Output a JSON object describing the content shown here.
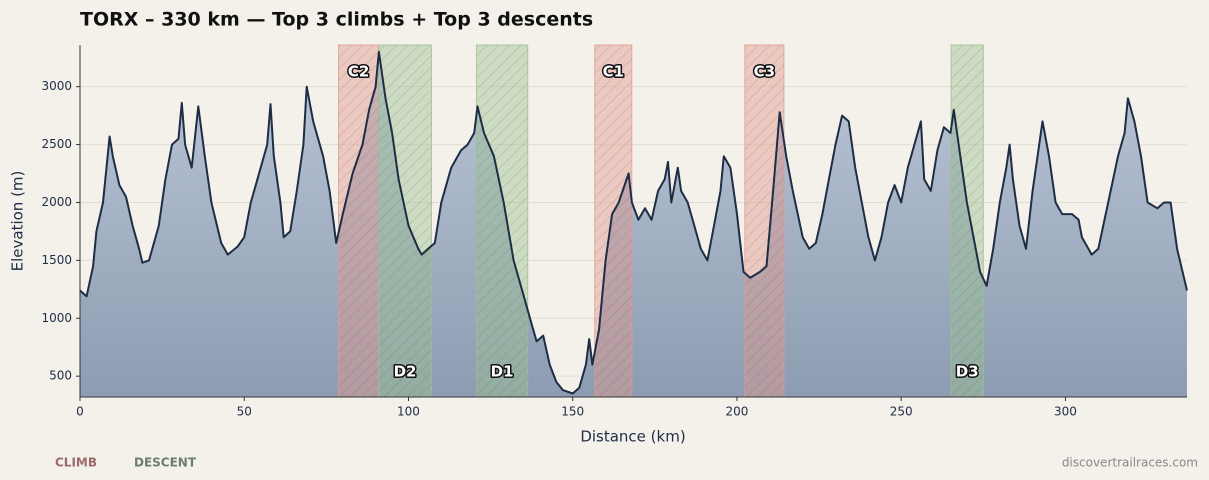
{
  "chart_data": {
    "type": "area",
    "title": "TORX – 330 km — Top 3 climbs + Top 3 descents",
    "xlabel": "Distance (km)",
    "ylabel": "Elevation (m)",
    "footer": "discovertrailraces.com",
    "color": "#1e2d45",
    "xlim": [
      0,
      337
    ],
    "xticks": [
      0,
      50,
      100,
      150,
      200,
      250,
      300
    ],
    "ylim": [
      320,
      3360
    ],
    "yticks": [
      500,
      1000,
      1500,
      2000,
      2500,
      3000
    ],
    "grid": true,
    "legend": [
      {
        "name": "CLIMB",
        "color": "#e29a8c"
      },
      {
        "name": "DESCENT",
        "color": "#9cc08f"
      }
    ],
    "bands": [
      {
        "label": "C2",
        "start": 78.7,
        "end": 90.9,
        "color": "#e29a8c"
      },
      {
        "label": "D2",
        "start": 90.9,
        "end": 107,
        "color": "#9cc08f"
      },
      {
        "label": "D1",
        "start": 120.7,
        "end": 136.3,
        "color": "#9cc08f"
      },
      {
        "label": "C1",
        "start": 156.7,
        "end": 168,
        "color": "#e29a8c"
      },
      {
        "label": "C3",
        "start": 202.4,
        "end": 214.3,
        "color": "#e29a8c"
      },
      {
        "label": "D3",
        "start": 265.2,
        "end": 275,
        "color": "#9cc08f"
      }
    ],
    "x": [
      0,
      2,
      4,
      5,
      7,
      9,
      10,
      12,
      14,
      16,
      18,
      19,
      21,
      22,
      24,
      26,
      28,
      30,
      31,
      32,
      34,
      36,
      38,
      40,
      43,
      45,
      48,
      50,
      52,
      54,
      57,
      58,
      59,
      61,
      62,
      64,
      66,
      68,
      69,
      71,
      74,
      76,
      78,
      80,
      83,
      86,
      88,
      90,
      91,
      93,
      95,
      97,
      100,
      103,
      104,
      106,
      108,
      110,
      113,
      116,
      118,
      120,
      121,
      123,
      126,
      129,
      132,
      135,
      137,
      139,
      141,
      143,
      145,
      147,
      150,
      152,
      154,
      155,
      156,
      158,
      160,
      162,
      164,
      167,
      168,
      170,
      172,
      174,
      176,
      178,
      179,
      180,
      182,
      183,
      185,
      187,
      189,
      191,
      193,
      195,
      196,
      198,
      200,
      202,
      204,
      207,
      209,
      211,
      213,
      215,
      217,
      220,
      222,
      224,
      226,
      228,
      230,
      232,
      234,
      236,
      238,
      240,
      242,
      244,
      246,
      248,
      250,
      252,
      254,
      256,
      257,
      259,
      261,
      263,
      265,
      266,
      268,
      270,
      272,
      274,
      276,
      278,
      280,
      282,
      283,
      284,
      286,
      288,
      290,
      292,
      293,
      295,
      297,
      299,
      302,
      304,
      305,
      308,
      310,
      313,
      316,
      318,
      319,
      321,
      323,
      325,
      328,
      330,
      332,
      334,
      337
    ],
    "values": [
      1240,
      1190,
      1450,
      1750,
      2000,
      2570,
      2400,
      2150,
      2050,
      1800,
      1600,
      1480,
      1500,
      1600,
      1800,
      2200,
      2500,
      2550,
      2860,
      2500,
      2300,
      2830,
      2400,
      2000,
      1650,
      1550,
      1620,
      1700,
      2000,
      2200,
      2500,
      2850,
      2400,
      2000,
      1700,
      1750,
      2100,
      2500,
      3000,
      2700,
      2400,
      2100,
      1650,
      1900,
      2250,
      2500,
      2800,
      3000,
      3300,
      2900,
      2600,
      2200,
      1800,
      1600,
      1550,
      1600,
      1650,
      2000,
      2300,
      2450,
      2500,
      2600,
      2830,
      2600,
      2400,
      2000,
      1500,
      1200,
      1000,
      800,
      850,
      600,
      450,
      380,
      350,
      400,
      600,
      820,
      600,
      900,
      1500,
      1900,
      2000,
      2250,
      2000,
      1850,
      1950,
      1850,
      2100,
      2200,
      2350,
      2000,
      2300,
      2100,
      2000,
      1800,
      1600,
      1500,
      1800,
      2100,
      2400,
      2300,
      1900,
      1400,
      1350,
      1400,
      1450,
      2100,
      2780,
      2400,
      2100,
      1700,
      1600,
      1650,
      1900,
      2200,
      2500,
      2750,
      2700,
      2300,
      2000,
      1700,
      1500,
      1700,
      2000,
      2150,
      2000,
      2300,
      2500,
      2700,
      2200,
      2100,
      2450,
      2650,
      2600,
      2800,
      2400,
      2000,
      1700,
      1400,
      1280,
      1600,
      2000,
      2300,
      2500,
      2200,
      1800,
      1600,
      2100,
      2500,
      2700,
      2400,
      2000,
      1900,
      1900,
      1850,
      1700,
      1550,
      1600,
      2000,
      2400,
      2600,
      2900,
      2700,
      2400,
      2000,
      1950,
      2000,
      2000,
      1600,
      1240
    ]
  }
}
